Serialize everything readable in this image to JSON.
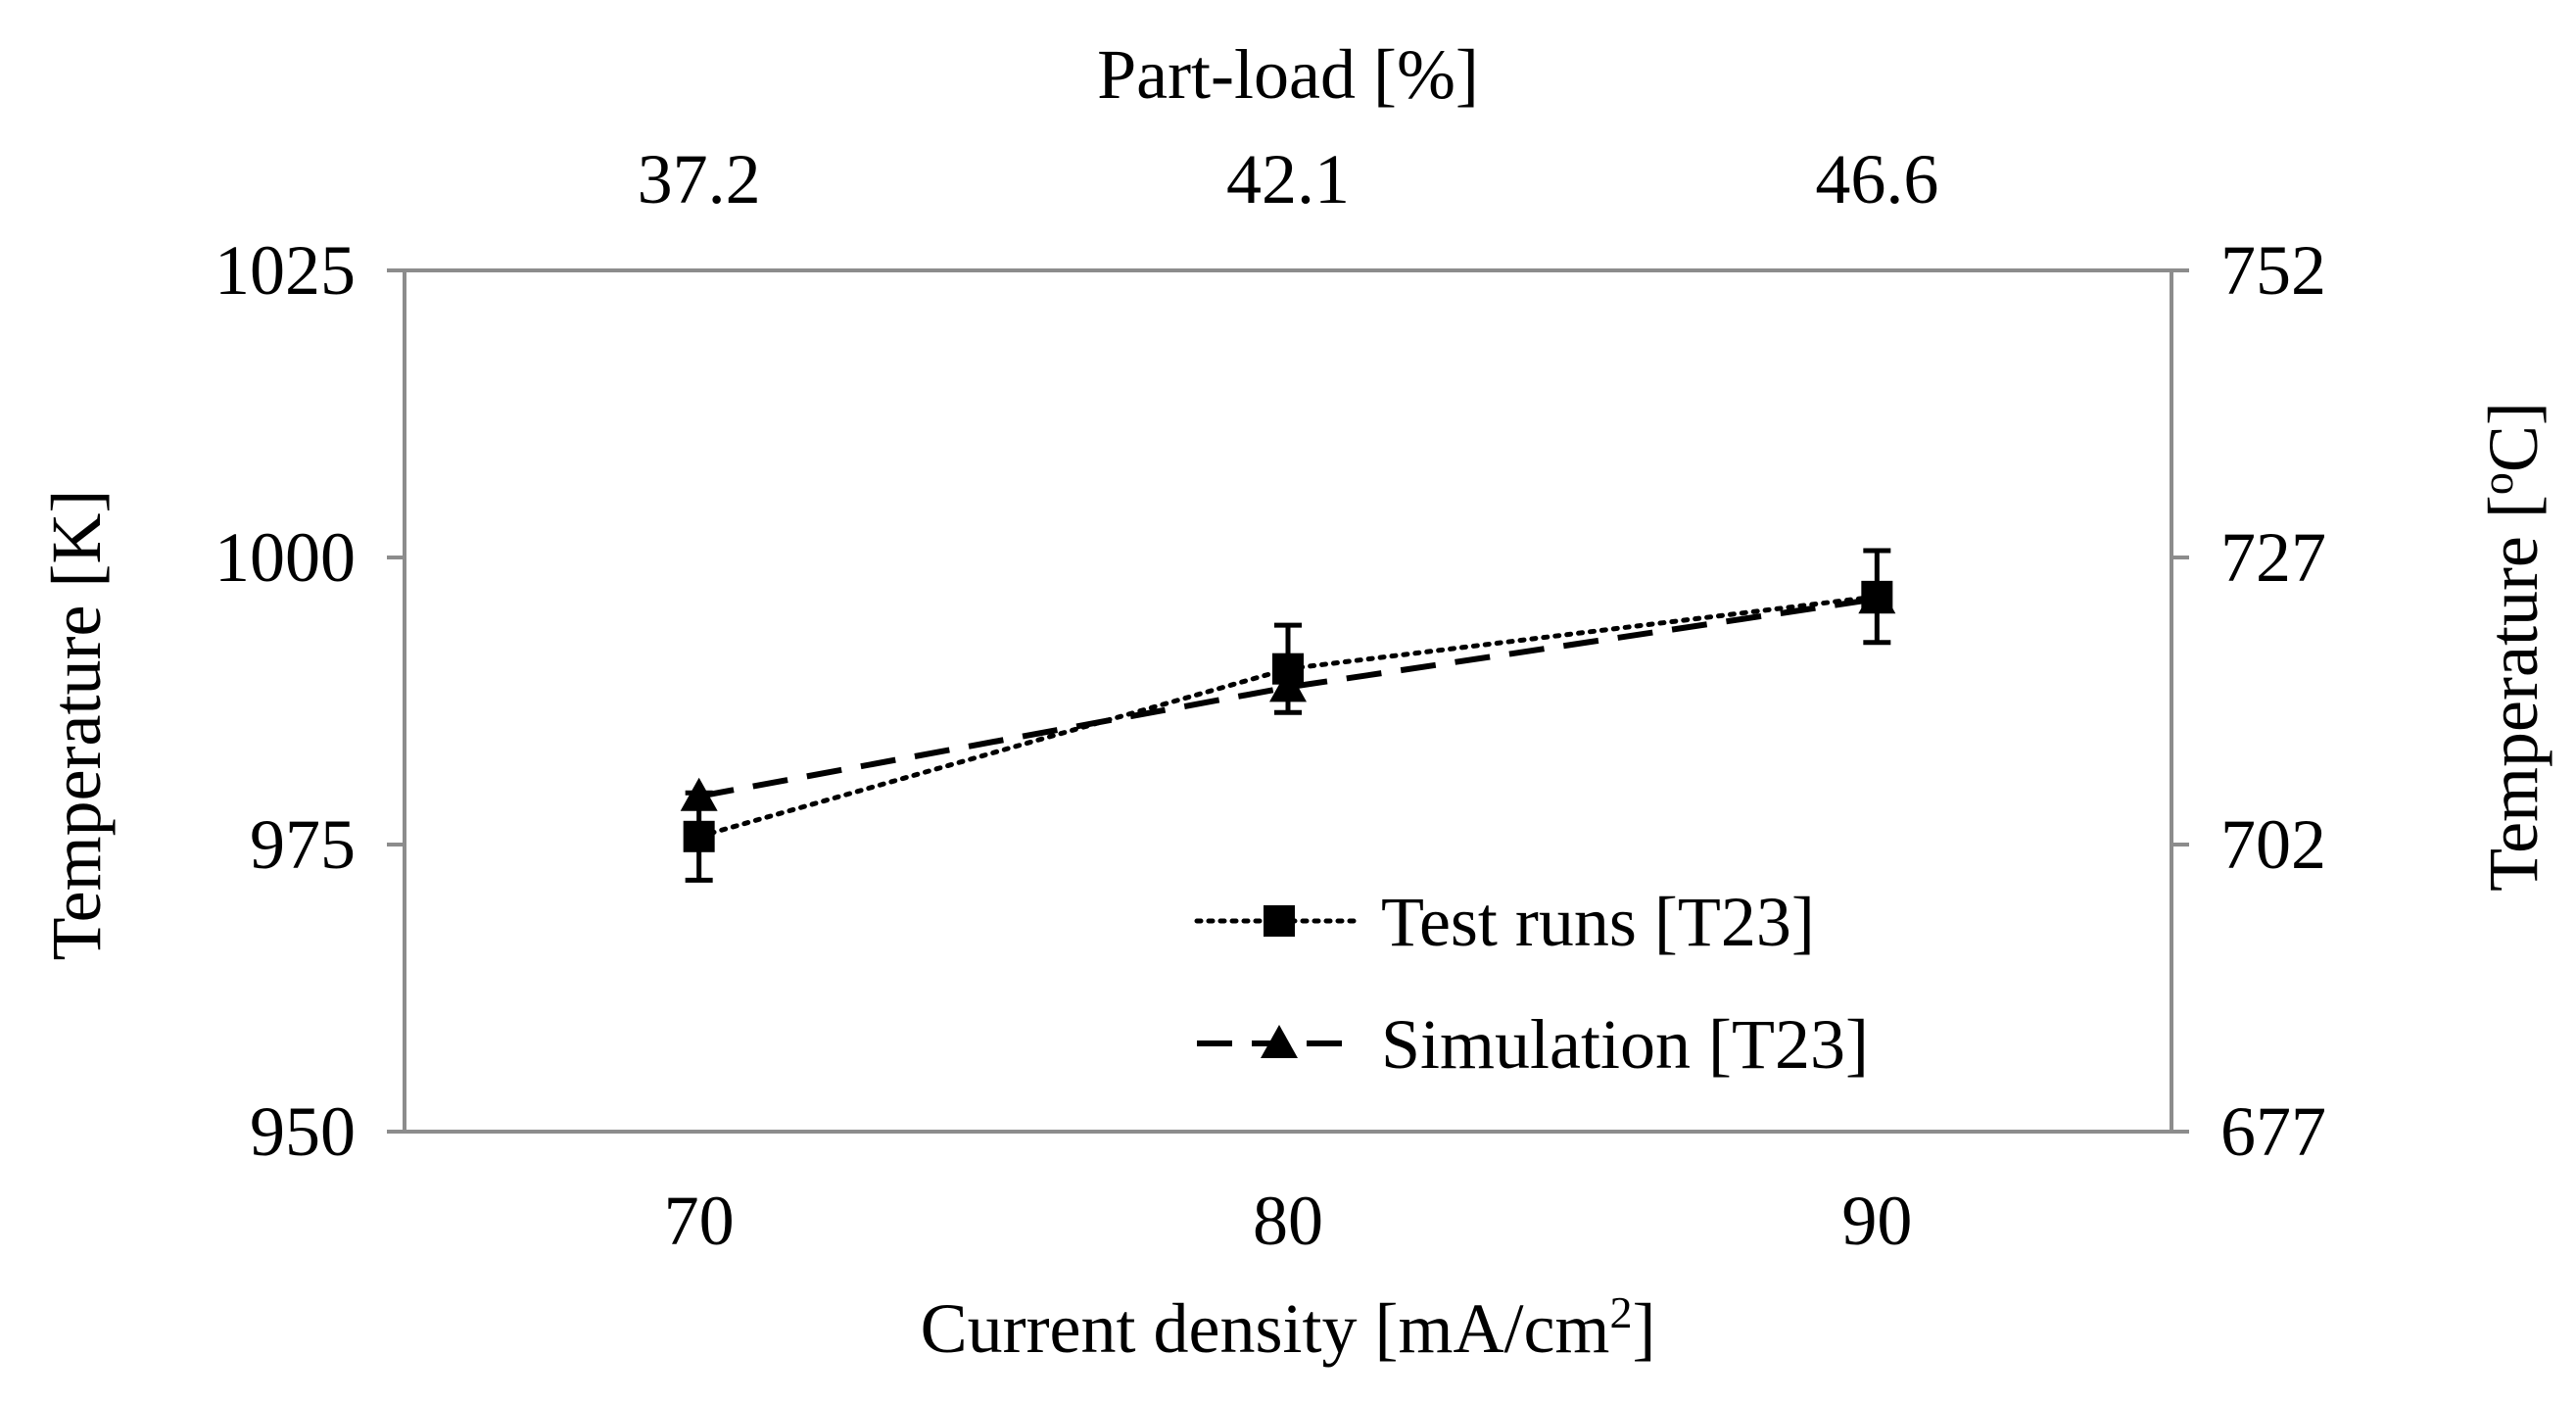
{
  "chart_data": {
    "type": "line",
    "title": "",
    "xlabel": "Current density [mA/cm",
    "xlabel_sup": "2",
    "xlabel_suffix": "]",
    "ylabel": "Temperature [K]",
    "ylabel2": "Temperature [",
    "ylabel2_sup": "o",
    "ylabel2_suffix": "C]",
    "top_axis_label": "Part-load [%]",
    "x": [
      70,
      80,
      90
    ],
    "x_tick_labels": [
      "70",
      "80",
      "90"
    ],
    "top_tick_labels": [
      "37.2",
      "42.1",
      "46.6"
    ],
    "y_ticks": [
      950,
      975,
      1000,
      1025
    ],
    "y_tick_labels": [
      "950",
      "975",
      "1000",
      "1025"
    ],
    "y2_tick_labels": [
      "677",
      "702",
      "727",
      "752"
    ],
    "ylim": [
      950,
      1025
    ],
    "xlim": [
      65,
      95
    ],
    "series": [
      {
        "name": "Test runs [T23]",
        "style": "dotted",
        "marker": "square",
        "values": [
          975.7,
          990.3,
          996.6
        ],
        "error": [
          3.8,
          3.8,
          4.0
        ]
      },
      {
        "name": "Simulation [T23]",
        "style": "dashed",
        "marker": "triangle",
        "values": [
          979.2,
          988.7,
          996.4
        ],
        "error": [
          0,
          0,
          0
        ]
      }
    ],
    "legend": "bottom-right",
    "grid": false,
    "colors": {
      "axis": "#8c8c8c",
      "series": "#000000"
    }
  }
}
